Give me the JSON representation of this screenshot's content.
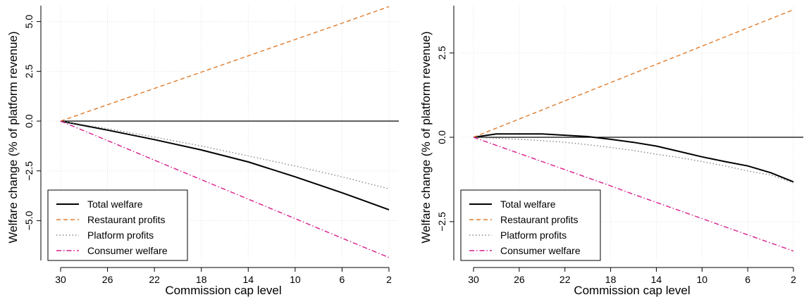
{
  "chart_data": [
    {
      "type": "line",
      "xlabel": "Commission cap level",
      "ylabel": "Welfare change (% of platform revenue)",
      "x_reversed": true,
      "xlim": [
        30,
        2
      ],
      "ylim": [
        -7.0,
        5.8
      ],
      "xticks": [
        30,
        26,
        22,
        18,
        14,
        10,
        6,
        2
      ],
      "yticks": [
        5.0,
        2.5,
        0.0,
        -2.5,
        -5.0
      ],
      "ytick_labels": [
        "5.0",
        "2.5",
        "0.0",
        "−2.5",
        "−5.0"
      ],
      "grid": true,
      "zero_line": true,
      "legend_position": "bottom-left",
      "x": [
        30,
        26,
        22,
        18,
        14,
        10,
        6,
        2
      ],
      "series": [
        {
          "name": "Total welfare",
          "color": "#000000",
          "dash": "solid",
          "values": [
            0,
            -0.45,
            -0.93,
            -1.45,
            -2.05,
            -2.8,
            -3.6,
            -4.45
          ]
        },
        {
          "name": "Restaurant profits",
          "color": "#e07b2a",
          "dash": "dashed",
          "values": [
            0,
            0.82,
            1.64,
            2.46,
            3.28,
            4.1,
            4.92,
            5.75
          ]
        },
        {
          "name": "Platform profits",
          "color": "#888888",
          "dash": "dotted",
          "values": [
            0,
            -0.38,
            -0.8,
            -1.25,
            -1.75,
            -2.25,
            -2.8,
            -3.4
          ]
        },
        {
          "name": "Consumer welfare",
          "color": "#d81b8c",
          "dash": "dashdot",
          "values": [
            0,
            -0.98,
            -1.96,
            -2.94,
            -3.92,
            -4.9,
            -5.88,
            -6.85
          ]
        }
      ]
    },
    {
      "type": "line",
      "xlabel": "Commission cap level",
      "ylabel": "Welfare change (% of platform revenue)",
      "x_reversed": true,
      "xlim": [
        30,
        2
      ],
      "ylim": [
        -3.65,
        3.9
      ],
      "xticks": [
        30,
        26,
        22,
        18,
        14,
        10,
        6,
        2
      ],
      "yticks": [
        2.5,
        0.0,
        -2.5
      ],
      "ytick_labels": [
        "2.5",
        "0.0",
        "−2.5"
      ],
      "grid": true,
      "zero_line": true,
      "legend_position": "bottom-left",
      "x": [
        30,
        28,
        26,
        24,
        22,
        20,
        18,
        16,
        14,
        12,
        10,
        8,
        6,
        4,
        2
      ],
      "series": [
        {
          "name": "Total welfare",
          "color": "#000000",
          "dash": "solid",
          "values": [
            0,
            0.1,
            0.1,
            0.1,
            0.06,
            0.02,
            -0.06,
            -0.15,
            -0.26,
            -0.42,
            -0.58,
            -0.72,
            -0.85,
            -1.05,
            -1.32
          ]
        },
        {
          "name": "Restaurant profits",
          "color": "#e07b2a",
          "dash": "dashed",
          "values": [
            0,
            0.27,
            0.54,
            0.81,
            1.08,
            1.35,
            1.62,
            1.89,
            2.16,
            2.43,
            2.7,
            2.97,
            3.24,
            3.51,
            3.78
          ]
        },
        {
          "name": "Platform profits",
          "color": "#888888",
          "dash": "dotted",
          "values": [
            0,
            -0.03,
            -0.06,
            -0.1,
            -0.15,
            -0.22,
            -0.3,
            -0.39,
            -0.5,
            -0.6,
            -0.72,
            -0.85,
            -1.0,
            -1.12,
            -1.35
          ]
        },
        {
          "name": "Consumer welfare",
          "color": "#d81b8c",
          "dash": "dashdot",
          "values": [
            0,
            -0.24,
            -0.48,
            -0.72,
            -0.96,
            -1.2,
            -1.44,
            -1.69,
            -1.93,
            -2.17,
            -2.41,
            -2.65,
            -2.89,
            -3.13,
            -3.37
          ]
        }
      ]
    }
  ]
}
